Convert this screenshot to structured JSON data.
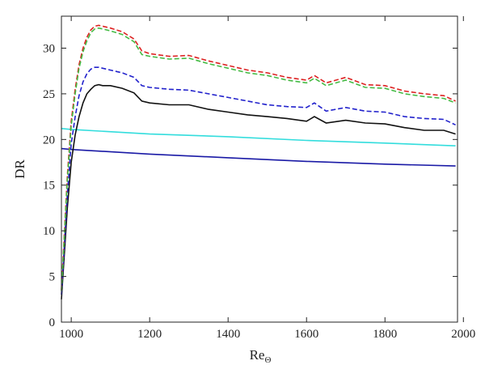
{
  "chart_data": {
    "type": "line",
    "title": "",
    "xlabel": "Re",
    "xlabel_subscript": "Θ",
    "ylabel": "DR",
    "xlim": [
      975,
      1985
    ],
    "ylim": [
      0,
      33.5
    ],
    "xticks": [
      1000,
      1200,
      1400,
      1600,
      1800,
      2000
    ],
    "yticks": [
      0,
      5,
      10,
      15,
      20,
      25,
      30
    ],
    "grid": false,
    "legend": "none",
    "series": [
      {
        "color": "#1a1aa6",
        "dash": "solid",
        "x": [
          975,
          1000,
          1200,
          1400,
          1600,
          1800,
          1980
        ],
        "y": [
          19.0,
          18.9,
          18.4,
          18.0,
          17.6,
          17.3,
          17.1
        ]
      },
      {
        "color": "#33dddd",
        "dash": "solid",
        "x": [
          975,
          1000,
          1200,
          1400,
          1600,
          1800,
          1980
        ],
        "y": [
          21.2,
          21.1,
          20.6,
          20.3,
          19.9,
          19.6,
          19.3
        ]
      },
      {
        "color": "#111111",
        "dash": "solid",
        "x": [
          975,
          990,
          1000,
          1010,
          1020,
          1030,
          1040,
          1050,
          1060,
          1070,
          1080,
          1100,
          1130,
          1160,
          1180,
          1200,
          1250,
          1300,
          1350,
          1400,
          1450,
          1500,
          1550,
          1600,
          1620,
          1650,
          1700,
          1750,
          1800,
          1850,
          1900,
          1950,
          1980
        ],
        "y": [
          2.5,
          12.5,
          17.5,
          20.5,
          22.5,
          24.0,
          25.0,
          25.5,
          25.9,
          26.0,
          25.9,
          25.9,
          25.6,
          25.1,
          24.2,
          24.0,
          23.8,
          23.8,
          23.3,
          23.0,
          22.7,
          22.5,
          22.3,
          22.0,
          22.5,
          21.8,
          22.1,
          21.8,
          21.7,
          21.3,
          21.0,
          21.0,
          20.6
        ]
      },
      {
        "color": "#2222cc",
        "dash": "dashed",
        "x": [
          975,
          990,
          1000,
          1010,
          1020,
          1030,
          1040,
          1050,
          1060,
          1070,
          1080,
          1100,
          1130,
          1160,
          1180,
          1200,
          1250,
          1300,
          1350,
          1400,
          1450,
          1500,
          1550,
          1600,
          1620,
          1650,
          1700,
          1750,
          1800,
          1850,
          1900,
          1950,
          1980
        ],
        "y": [
          3.0,
          14.0,
          19.5,
          22.5,
          24.8,
          26.3,
          27.2,
          27.7,
          27.9,
          27.9,
          27.8,
          27.6,
          27.3,
          26.8,
          25.9,
          25.7,
          25.5,
          25.4,
          25.0,
          24.6,
          24.2,
          23.8,
          23.6,
          23.5,
          24.0,
          23.1,
          23.5,
          23.1,
          23.0,
          22.5,
          22.3,
          22.2,
          21.6
        ]
      },
      {
        "color": "#dd2222",
        "dash": "dashed",
        "x": [
          975,
          990,
          1000,
          1010,
          1020,
          1030,
          1040,
          1050,
          1060,
          1070,
          1080,
          1100,
          1130,
          1160,
          1180,
          1200,
          1250,
          1300,
          1350,
          1400,
          1450,
          1500,
          1550,
          1600,
          1620,
          1650,
          1700,
          1750,
          1800,
          1850,
          1900,
          1950,
          1980
        ],
        "y": [
          3.5,
          16.0,
          22.0,
          25.5,
          28.2,
          30.0,
          31.2,
          32.0,
          32.4,
          32.5,
          32.4,
          32.2,
          31.8,
          31.0,
          29.7,
          29.4,
          29.1,
          29.2,
          28.6,
          28.1,
          27.6,
          27.3,
          26.8,
          26.5,
          27.0,
          26.2,
          26.8,
          26.0,
          25.9,
          25.3,
          25.0,
          24.8,
          24.2
        ]
      },
      {
        "color": "#44bb44",
        "dash": "dashed",
        "x": [
          975,
          990,
          1000,
          1010,
          1020,
          1030,
          1040,
          1050,
          1060,
          1070,
          1080,
          1100,
          1130,
          1160,
          1180,
          1200,
          1250,
          1300,
          1350,
          1400,
          1450,
          1500,
          1550,
          1600,
          1620,
          1650,
          1700,
          1750,
          1800,
          1850,
          1900,
          1950,
          1980
        ],
        "y": [
          3.4,
          15.5,
          21.5,
          25.0,
          27.8,
          29.6,
          30.8,
          31.7,
          32.1,
          32.2,
          32.1,
          31.9,
          31.5,
          30.7,
          29.3,
          29.1,
          28.8,
          28.9,
          28.3,
          27.8,
          27.3,
          27.0,
          26.5,
          26.2,
          26.7,
          25.9,
          26.5,
          25.7,
          25.6,
          25.0,
          24.7,
          24.5,
          24.0
        ]
      }
    ]
  }
}
